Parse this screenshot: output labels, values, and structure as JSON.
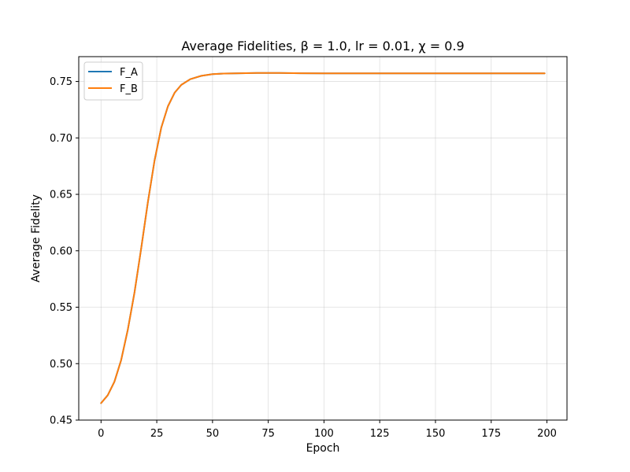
{
  "chart_data": {
    "type": "line",
    "title": "Average Fidelities, β = 1.0, lr = 0.01, χ = 0.9",
    "xlabel": "Epoch",
    "ylabel": "Average Fidelity",
    "xlim": [
      -10,
      209
    ],
    "ylim": [
      0.45,
      0.772
    ],
    "xticks": [
      0,
      25,
      50,
      75,
      100,
      125,
      150,
      175,
      200
    ],
    "yticks": [
      0.45,
      0.5,
      0.55,
      0.6,
      0.65,
      0.7,
      0.75
    ],
    "grid": true,
    "legend_position": "top-left",
    "x": [
      0,
      3,
      6,
      9,
      12,
      15,
      18,
      21,
      24,
      27,
      30,
      33,
      36,
      40,
      45,
      50,
      55,
      60,
      70,
      80,
      90,
      100,
      125,
      150,
      175,
      199
    ],
    "series": [
      {
        "name": "F_A",
        "color": "#1f77b4",
        "values": [
          0.465,
          0.472,
          0.484,
          0.503,
          0.53,
          0.563,
          0.602,
          0.643,
          0.68,
          0.709,
          0.728,
          0.74,
          0.747,
          0.752,
          0.755,
          0.7565,
          0.757,
          0.7572,
          0.7575,
          0.7575,
          0.7573,
          0.7572,
          0.7572,
          0.7572,
          0.7572,
          0.7572
        ]
      },
      {
        "name": "F_B",
        "color": "#ff7f0e",
        "values": [
          0.465,
          0.472,
          0.484,
          0.503,
          0.53,
          0.563,
          0.602,
          0.643,
          0.68,
          0.709,
          0.728,
          0.74,
          0.747,
          0.752,
          0.755,
          0.7565,
          0.757,
          0.7572,
          0.7575,
          0.7575,
          0.7573,
          0.7572,
          0.7572,
          0.7572,
          0.7572,
          0.7572
        ]
      }
    ]
  }
}
